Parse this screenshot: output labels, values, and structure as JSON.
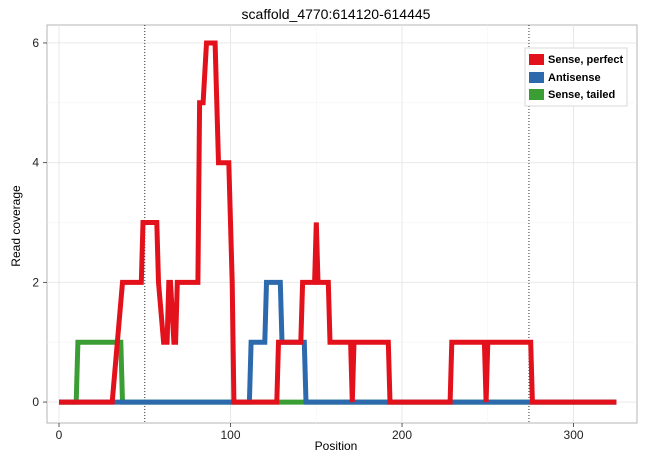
{
  "chart_data": {
    "type": "line",
    "title": "scaffold_4770:614120-614445",
    "xlabel": "Position",
    "ylabel": "Read coverage",
    "xlim": [
      -7,
      337
    ],
    "ylim": [
      -0.35,
      6.3
    ],
    "x_ticks": [
      0,
      100,
      200,
      300
    ],
    "x_tick_labels": [
      "0",
      "100",
      "200",
      "300"
    ],
    "y_ticks": [
      0,
      2,
      4,
      6
    ],
    "y_tick_labels": [
      "0",
      "2",
      "4",
      "6"
    ],
    "grid": true,
    "legend_position": "top-right",
    "vlines": [
      50,
      274
    ],
    "series": [
      {
        "name": "Sense, perfect",
        "color": "#e3111b",
        "x": [
          0,
          31,
          37,
          38,
          48,
          49,
          57,
          58,
          61,
          63,
          64,
          65,
          67,
          68,
          69,
          71,
          72,
          81,
          82,
          84,
          86,
          91,
          93,
          99,
          100,
          101,
          102,
          103,
          127,
          128,
          141,
          142,
          148,
          149,
          150,
          151,
          152,
          153,
          154,
          157,
          158,
          170,
          171,
          172,
          173,
          192,
          193,
          228,
          229,
          248,
          249,
          250,
          251,
          275,
          276,
          325
        ],
        "y": [
          0,
          0,
          2,
          2,
          2,
          3,
          3,
          2,
          1,
          1,
          2,
          2,
          1,
          1,
          2,
          2,
          2,
          2,
          5,
          5,
          6,
          6,
          4,
          4,
          3,
          2,
          0,
          0,
          0,
          1,
          1,
          2,
          2,
          2,
          3,
          2,
          2,
          2,
          2,
          2,
          1,
          1,
          0,
          1,
          1,
          1,
          0,
          0,
          1,
          1,
          0,
          1,
          1,
          1,
          0,
          0
        ]
      },
      {
        "name": "Antisense",
        "color": "#2d6aad",
        "x": [
          0,
          111,
          112,
          120,
          121,
          129,
          130,
          135,
          136,
          143,
          144,
          325
        ],
        "y": [
          0,
          0,
          1,
          1,
          2,
          2,
          1,
          1,
          1,
          1,
          0,
          0
        ]
      },
      {
        "name": "Sense, tailed",
        "color": "#3a9e35",
        "x": [
          0,
          10,
          11,
          36,
          37,
          325
        ],
        "y": [
          0,
          0,
          1,
          1,
          0,
          0
        ]
      }
    ]
  }
}
